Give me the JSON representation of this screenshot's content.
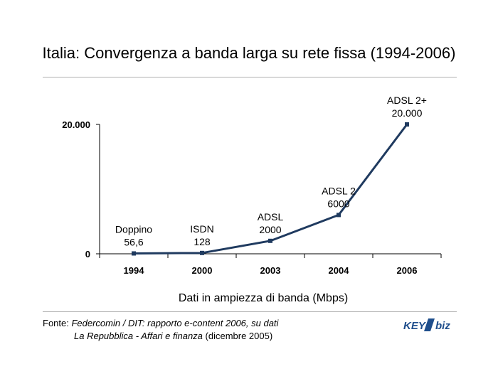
{
  "title": "Italia: Convergenza a banda larga su rete fissa (1994-2006)",
  "chart_data": {
    "type": "line",
    "categories": [
      "1994",
      "2000",
      "2003",
      "2004",
      "2006"
    ],
    "values": [
      56.6,
      128,
      2000,
      6000,
      20000
    ],
    "annotations": [
      {
        "name": "Doppino",
        "value_label": "56,6"
      },
      {
        "name": "ISDN",
        "value_label": "128"
      },
      {
        "name": "ADSL",
        "value_label": "2000"
      },
      {
        "name": "ADSL 2",
        "value_label": "6000"
      },
      {
        "name": "ADSL 2+",
        "value_label": "20.000"
      }
    ],
    "y_ticks": [
      {
        "value": 0,
        "label": "0"
      },
      {
        "value": 20000,
        "label": "20.000"
      }
    ],
    "ylim": [
      0,
      20000
    ],
    "xlabel": "Dati in ampiezza di banda (Mbps)",
    "ylabel": "",
    "grid": false,
    "line_color": "#1f3a5f"
  },
  "source": {
    "prefix": "Fonte: ",
    "line1_italic": "Federcomin / DIT: rapporto e-content 2006, su dati",
    "line2_italic": "La Repubblica - Affari e finanza",
    "line2_rest": " (dicembre 2005)"
  },
  "logo": {
    "text_left": "KEY",
    "text_right": "biz",
    "color": "#1f4e8c"
  }
}
